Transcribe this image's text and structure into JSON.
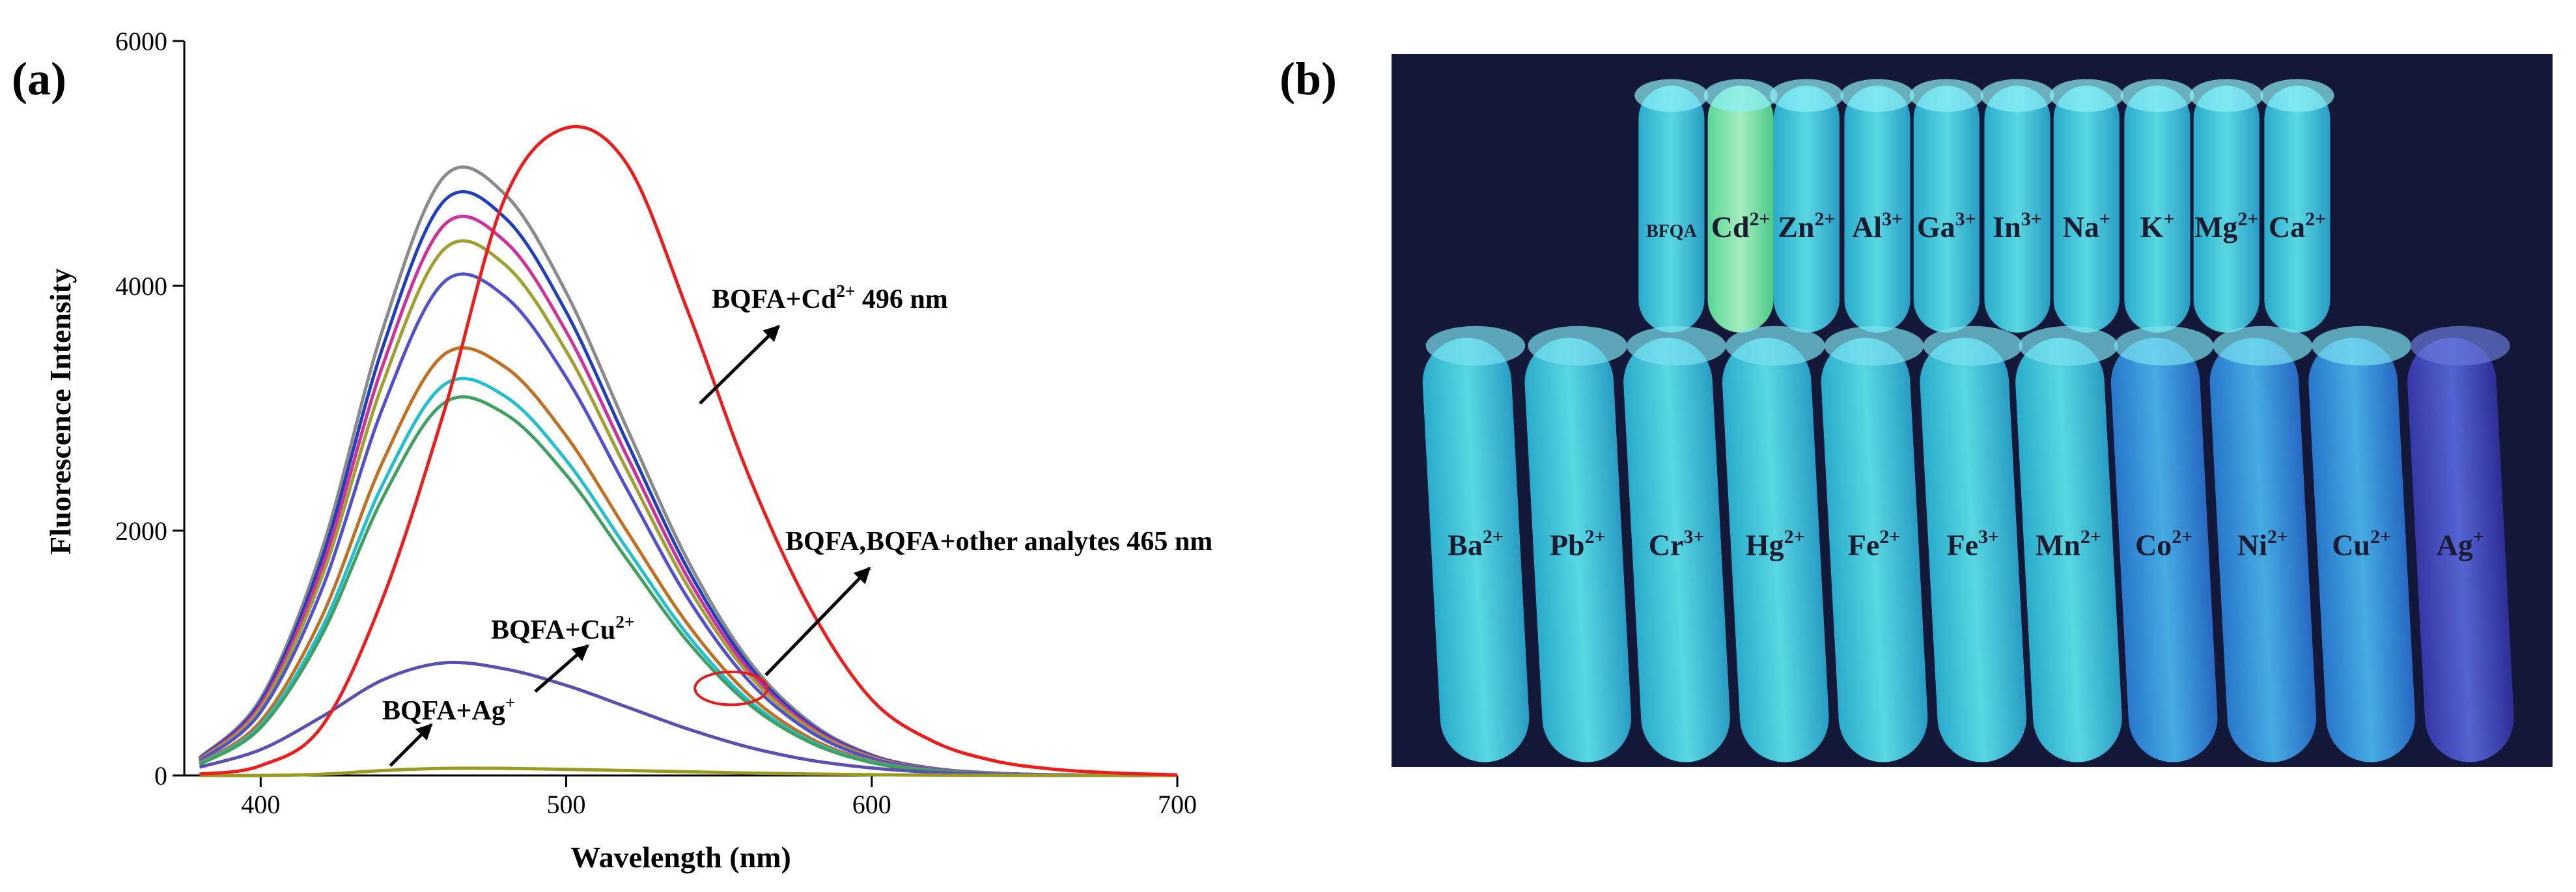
{
  "chart_data": {
    "type": "line",
    "panel_label": "(a)",
    "x_label": "Wavelength (nm)",
    "y_label": "Fluorescence Intensity",
    "x": [
      380,
      400,
      420,
      440,
      460,
      480,
      500,
      520,
      540,
      560,
      580,
      600,
      620,
      640,
      660,
      680,
      700
    ],
    "xlim": [
      375,
      700
    ],
    "ylim": [
      0,
      6000
    ],
    "xticks": [
      400,
      500,
      600,
      700
    ],
    "yticks": [
      0,
      2000,
      4000,
      6000
    ],
    "grid": false,
    "series": [
      {
        "color": "#8a8a8a",
        "values": [
          144,
          629,
          1841,
          3648,
          4891,
          4747,
          3945,
          2831,
          1747,
          931,
          431,
          168,
          59,
          20,
          5,
          0,
          0
        ]
      },
      {
        "color": "#1f3fbf",
        "values": [
          138,
          603,
          1767,
          3501,
          4693,
          4555,
          3786,
          2717,
          1677,
          893,
          413,
          162,
          57,
          19,
          5,
          0,
          0
        ]
      },
      {
        "color": "#d0309a",
        "values": [
          132,
          578,
          1693,
          3353,
          4495,
          4363,
          3626,
          2603,
          1606,
          855,
          396,
          155,
          55,
          18,
          5,
          0,
          0
        ]
      },
      {
        "color": "#a0a030",
        "values": [
          126,
          552,
          1618,
          3206,
          4298,
          4172,
          3467,
          2488,
          1536,
          818,
          378,
          148,
          52,
          17,
          4,
          0,
          0
        ]
      },
      {
        "color": "#5050d0",
        "values": [
          118,
          518,
          1518,
          3007,
          4031,
          3913,
          3252,
          2334,
          1440,
          767,
          355,
          139,
          49,
          16,
          4,
          0,
          0
        ]
      },
      {
        "color": "#c07020",
        "values": [
          101,
          442,
          1295,
          2565,
          3438,
          3337,
          2774,
          1991,
          1228,
          654,
          303,
          118,
          42,
          14,
          3,
          0,
          0
        ]
      },
      {
        "color": "#20c0d0",
        "values": [
          94,
          410,
          1202,
          2381,
          3191,
          3098,
          2574,
          1848,
          1140,
          607,
          281,
          110,
          39,
          13,
          3,
          0,
          0
        ]
      },
      {
        "color": "#40a060",
        "values": [
          89,
          391,
          1146,
          2270,
          3043,
          2954,
          2455,
          1762,
          1087,
          579,
          268,
          105,
          37,
          12,
          3,
          0,
          0
        ]
      },
      {
        "color": "#5a50b0",
        "values": [
          68,
          211,
          479,
          781,
          920,
          870,
          736,
          558,
          378,
          229,
          124,
          61,
          26,
          10,
          4,
          0,
          0
        ]
      },
      {
        "color": "#9a9a20",
        "values": [
          0,
          0,
          10,
          40,
          58,
          58,
          50,
          40,
          30,
          20,
          12,
          6,
          3,
          1,
          0,
          0,
          0
        ]
      },
      {
        "color": "#ee1c1c",
        "values": [
          10,
          80,
          400,
          1450,
          2970,
          4720,
          5290,
          4990,
          3780,
          2435,
          1360,
          620,
          280,
          120,
          50,
          20,
          5
        ]
      }
    ],
    "annotations": [
      {
        "base": "BQFA+Cd",
        "sup": "2+",
        "rest": " 496 nm"
      },
      {
        "base": "BQFA,BQFA+other analytes 465 nm"
      },
      {
        "base": "BQFA+Cu",
        "sup": "2+"
      },
      {
        "base": "BQFA+Ag",
        "sup": "+"
      }
    ]
  },
  "photo": {
    "panel_label": "(b)",
    "top_labels": [
      {
        "base": "BFQA"
      },
      {
        "base": "Cd",
        "sup": "2+"
      },
      {
        "base": "Zn",
        "sup": "2+"
      },
      {
        "base": "Al",
        "sup": "3+"
      },
      {
        "base": "Ga",
        "sup": "3+"
      },
      {
        "base": "In",
        "sup": "3+"
      },
      {
        "base": "Na",
        "sup": "+"
      },
      {
        "base": "K",
        "sup": "+"
      },
      {
        "base": "Mg",
        "sup": "2+"
      },
      {
        "base": "Ca",
        "sup": "2+"
      }
    ],
    "bottom_labels": [
      {
        "base": "Ba",
        "sup": "2+"
      },
      {
        "base": "Pb",
        "sup": "2+"
      },
      {
        "base": "Cr",
        "sup": "3+"
      },
      {
        "base": "Hg",
        "sup": "2+"
      },
      {
        "base": "Fe",
        "sup": "2+"
      },
      {
        "base": "Fe",
        "sup": "3+"
      },
      {
        "base": "Mn",
        "sup": "2+"
      },
      {
        "base": "Co",
        "sup": "2+"
      },
      {
        "base": "Ni",
        "sup": "2+"
      },
      {
        "base": "Cu",
        "sup": "2+"
      },
      {
        "base": "Ag",
        "sup": "+"
      }
    ]
  }
}
